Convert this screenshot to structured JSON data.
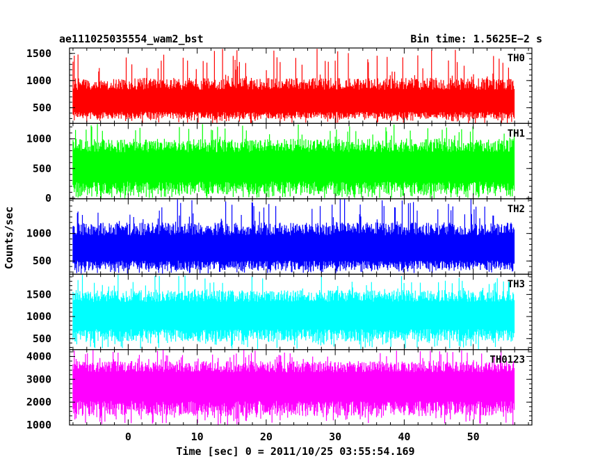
{
  "header": {
    "left": "ae111025035554_wam2_bst",
    "right": "Bin time: 1.5625E−2 s"
  },
  "chart_data": {
    "type": "line",
    "render": "histogram-step",
    "xlabel": "Time [sec] 0 = 2011/10/25 03:55:54.169",
    "ylabel": "Counts/sec",
    "xlim": [
      -8.5,
      58.5
    ],
    "data_x_range": [
      -8.0,
      56.0
    ],
    "bin_time": 0.015625,
    "x_ticks": [
      0,
      10,
      20,
      30,
      40,
      50
    ],
    "panels": [
      {
        "name": "TH0",
        "color": "#ff0000",
        "ylim": [
          210,
          1600
        ],
        "ticks": [
          500,
          1000,
          1500
        ],
        "baseline": 560,
        "typical_peak": 1050,
        "max_peak": 1600,
        "typical_trough": 290,
        "min_trough": 210
      },
      {
        "name": "TH1",
        "color": "#00ff00",
        "ylim": [
          -10,
          1260
        ],
        "ticks": [
          0,
          500,
          1000
        ],
        "baseline": 500,
        "typical_peak": 1000,
        "max_peak": 1260,
        "typical_trough": 60,
        "min_trough": 0
      },
      {
        "name": "TH2",
        "color": "#0000ff",
        "ylim": [
          260,
          1630
        ],
        "ticks": [
          500,
          1000
        ],
        "baseline": 680,
        "typical_peak": 1200,
        "max_peak": 1630,
        "typical_trough": 330,
        "min_trough": 270
      },
      {
        "name": "TH3",
        "color": "#00ffff",
        "ylim": [
          250,
          1960
        ],
        "ticks": [
          500,
          1000,
          1500
        ],
        "baseline": 1000,
        "typical_peak": 1600,
        "max_peak": 1960,
        "typical_trough": 430,
        "min_trough": 260
      },
      {
        "name": "TH0123",
        "color": "#ff00ff",
        "ylim": [
          1000,
          4300
        ],
        "ticks": [
          1000,
          2000,
          3000,
          4000
        ],
        "baseline": 2700,
        "typical_peak": 3800,
        "max_peak": 4300,
        "typical_trough": 1400,
        "min_trough": 1000
      }
    ]
  }
}
